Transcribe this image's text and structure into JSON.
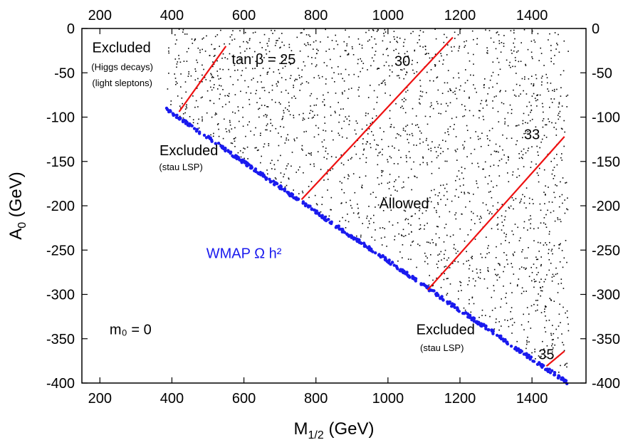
{
  "chart_data": {
    "type": "scatter",
    "xlabel_main": "M",
    "xlabel_sub": "1/2",
    "xlabel_unit": " (GeV)",
    "ylabel_main": "A",
    "ylabel_sub": "0",
    "ylabel_unit": " (GeV)",
    "xlim": [
      150,
      1550
    ],
    "ylim": [
      -400,
      0
    ],
    "x_ticks": [
      200,
      400,
      600,
      800,
      1000,
      1200,
      1400
    ],
    "y_ticks": [
      0,
      -50,
      -100,
      -150,
      -200,
      -250,
      -300,
      -350,
      -400
    ],
    "top_axis_ticks": [
      200,
      400,
      600,
      800,
      1000,
      1200,
      1400
    ],
    "right_axis_ticks": [
      0,
      -50,
      -100,
      -150,
      -200,
      -250,
      -300,
      -350,
      -400
    ],
    "allowed_region": {
      "description_label": "Allowed",
      "boundary": [
        [
          380,
          -90
        ],
        [
          1500,
          -400
        ]
      ],
      "upper_bound_y": 0,
      "right_bound_x": 1500,
      "approx_point_count": 2000
    },
    "wmap_band": {
      "name": "WMAP Ω h²",
      "color": "#1a1aee",
      "points": [
        [
          380,
          -90
        ],
        [
          500,
          -123
        ],
        [
          600,
          -151
        ],
        [
          700,
          -179
        ],
        [
          800,
          -207
        ],
        [
          900,
          -235
        ],
        [
          1000,
          -262
        ],
        [
          1100,
          -290
        ],
        [
          1200,
          -318
        ],
        [
          1300,
          -345
        ],
        [
          1400,
          -373
        ],
        [
          1500,
          -400
        ]
      ]
    },
    "tan_beta_lines": [
      {
        "label": "tan β = 25",
        "color": "#ee1111",
        "points": [
          [
            420,
            -94
          ],
          [
            550,
            -20
          ]
        ]
      },
      {
        "label": "30",
        "color": "#ee1111",
        "points": [
          [
            760,
            -193
          ],
          [
            1180,
            -10
          ]
        ]
      },
      {
        "label": "33",
        "color": "#ee1111",
        "points": [
          [
            1110,
            -295
          ],
          [
            1490,
            -122
          ]
        ]
      },
      {
        "label": "35",
        "color": "#ee1111",
        "points": [
          [
            1440,
            -381
          ],
          [
            1490,
            -364
          ]
        ]
      }
    ],
    "annotations": [
      {
        "id": "excluded_top",
        "text": "Excluded",
        "x": 260,
        "y": -27,
        "size": "big"
      },
      {
        "id": "higgs",
        "text": "(Higgs decays)",
        "x": 262,
        "y": -47,
        "size": "small"
      },
      {
        "id": "slepton",
        "text": "(light sleptons)",
        "x": 262,
        "y": -65,
        "size": "small"
      },
      {
        "id": "excluded_stau1",
        "text": "Excluded",
        "x": 447,
        "y": -143,
        "size": "big"
      },
      {
        "id": "stau1",
        "text": "(stau LSP)",
        "x": 425,
        "y": -160,
        "size": "small"
      },
      {
        "id": "allowed",
        "text": "Allowed",
        "x": 1045,
        "y": -203,
        "size": "big"
      },
      {
        "id": "m0",
        "text": "m₀ = 0",
        "x": 285,
        "y": -345,
        "size": "big"
      },
      {
        "id": "excluded_stau2",
        "text": "Excluded",
        "x": 1160,
        "y": -345,
        "size": "big"
      },
      {
        "id": "stau2",
        "text": "(stau LSP)",
        "x": 1150,
        "y": -364,
        "size": "small"
      }
    ]
  }
}
